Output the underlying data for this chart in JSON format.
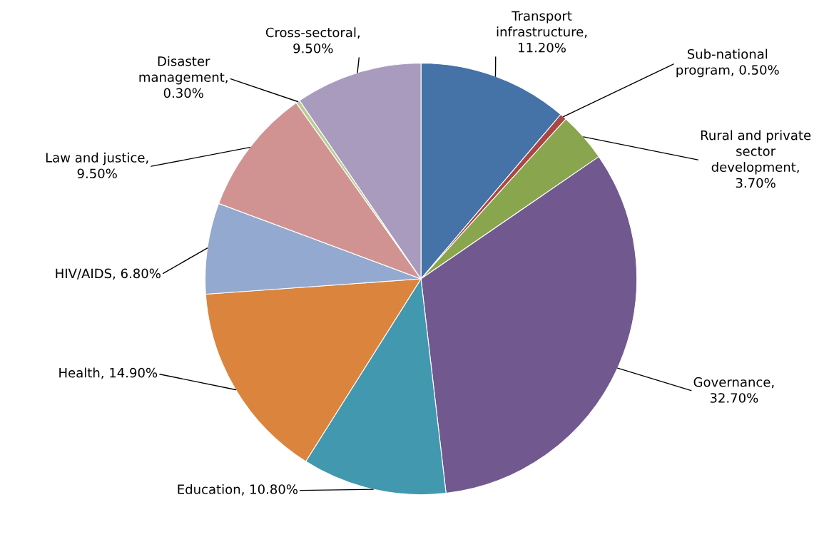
{
  "chart_data": {
    "type": "pie",
    "categories": [
      "Transport\ninfrastructure,\n11.20%",
      "Sub-national\nprogram, 0.50%",
      "Rural and private\nsector\ndevelopment,\n3.70%",
      "Governance,\n32.70%",
      "Education, 10.80%",
      "Health, 14.90%",
      "HIV/AIDS, 6.80%",
      "Law and justice,\n9.50%",
      "Disaster\nmanagement,\n0.30%",
      "Cross-sectoral,\n9.50%"
    ],
    "values": [
      11.2,
      0.5,
      3.7,
      32.7,
      10.8,
      14.9,
      6.8,
      9.5,
      0.3,
      9.5
    ],
    "colors": [
      "#4572a7",
      "#aa4643",
      "#89a54e",
      "#71588f",
      "#4198af",
      "#db843d",
      "#93a9cf",
      "#d19392",
      "#b9cd96",
      "#a99bbd"
    ]
  }
}
